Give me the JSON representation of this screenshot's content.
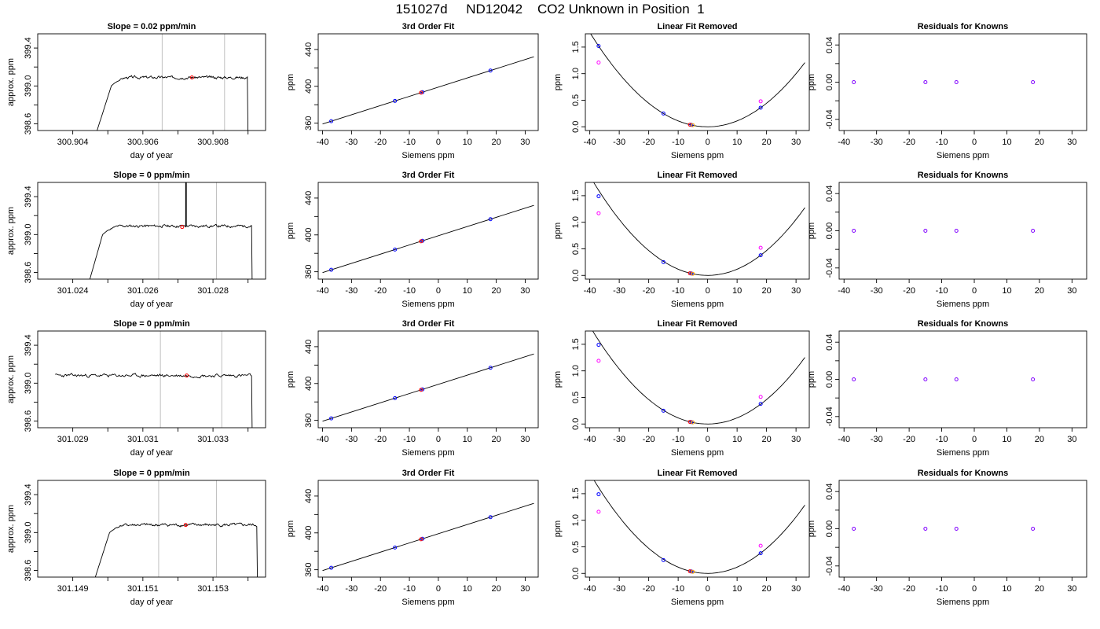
{
  "page": {
    "title": "151027d     ND12042    CO2 Unknown in Position  1"
  },
  "colors": {
    "axis": "#000000",
    "trace": "#000000",
    "guide_lines": "#c0c0c0",
    "known_points": "#0000ff",
    "corrected_points": "#ff00ff",
    "unknown_point": "#ff0000",
    "unknown_point_alt": "#ffa500",
    "residual_points": "#8000ff"
  },
  "chart_data": [
    {
      "type": "line",
      "panel": "raw",
      "row": 0,
      "title": "Slope =  0.02  ppm/min",
      "xlabel": "day of year",
      "ylabel": "approx. ppm",
      "xlim": [
        300.903,
        300.9095
      ],
      "ylim": [
        398.53,
        399.55
      ],
      "x_ticks": [
        300.904,
        300.906,
        300.908
      ],
      "x_tick_labels": [
        "300.904",
        "300.906",
        "300.908"
      ],
      "x_minor_ticks": [
        300.905,
        300.907,
        300.909
      ],
      "y_ticks": [
        398.6,
        399.0,
        399.4
      ],
      "y_tick_labels": [
        "398.6",
        "399.0",
        "399.4"
      ],
      "y_minor_ticks": [
        398.8,
        399.2
      ],
      "guides": [
        300.90655,
        300.90833
      ],
      "trace": {
        "start": 300.90465,
        "rise_end": 300.9051,
        "level_x": 300.9056,
        "end": 300.90898,
        "level": 399.09,
        "noise": 0.01,
        "spike_x": null,
        "seed": 3
      },
      "marker": {
        "x": 300.9074,
        "y": 399.09
      }
    },
    {
      "type": "scatter",
      "panel": "fit",
      "row": 0,
      "title": "3rd Order Fit",
      "xlabel": "Siemens ppm",
      "ylabel": "ppm",
      "xlim": [
        -41.5,
        34.5
      ],
      "ylim": [
        352,
        457
      ],
      "x_ticks": [
        -40,
        -30,
        -20,
        -10,
        0,
        10,
        20,
        30
      ],
      "y_ticks": [
        360,
        400,
        440
      ],
      "y_minor_ticks": [
        380,
        420
      ],
      "line": {
        "slope": 1.0,
        "intercept": 399.1,
        "x0": -40,
        "x1": 33
      },
      "known": [
        [
          -37,
          362.1
        ],
        [
          -15,
          384.1
        ],
        [
          -5.5,
          393.6
        ],
        [
          18,
          417.1
        ]
      ],
      "unknown": [
        [
          -6,
          393.1
        ]
      ]
    },
    {
      "type": "scatter",
      "panel": "linear_removed",
      "row": 0,
      "title": "Linear Fit Removed",
      "xlabel": "Siemens ppm",
      "ylabel": "ppm",
      "xlim": [
        -41.5,
        34.5
      ],
      "ylim": [
        -0.07,
        1.75
      ],
      "x_ticks": [
        -40,
        -30,
        -20,
        -10,
        0,
        10,
        20,
        30
      ],
      "y_ticks": [
        0.0,
        0.5,
        1.0,
        1.5
      ],
      "y_tick_labels": [
        "0.0",
        "0.5",
        "1.0",
        "1.5"
      ],
      "curve": {
        "a": 0.00111,
        "x0": -40,
        "x1": 33
      },
      "known": [
        [
          -37,
          1.52
        ],
        [
          -15,
          0.25
        ],
        [
          -5.5,
          0.035
        ],
        [
          18,
          0.36
        ]
      ],
      "corrected": [
        [
          -37,
          1.21
        ],
        [
          18,
          0.48
        ]
      ],
      "unknown": [
        [
          -6,
          0.04
        ],
        [
          -5,
          0.03
        ]
      ]
    },
    {
      "type": "scatter",
      "panel": "residuals",
      "row": 0,
      "title": "Residuals for Knowns",
      "xlabel": "Siemens ppm",
      "ylabel": "ppm",
      "xlim": [
        -41.5,
        34.5
      ],
      "ylim": [
        -0.052,
        0.052
      ],
      "x_ticks": [
        -40,
        -30,
        -20,
        -10,
        0,
        10,
        20,
        30
      ],
      "y_ticks": [
        -0.04,
        0.0,
        0.04
      ],
      "y_tick_labels": [
        "-0.04",
        "0.00",
        "0.04"
      ],
      "y_minor_ticks": [
        -0.02,
        0.02
      ],
      "points": [
        [
          -37,
          0
        ],
        [
          -15,
          0
        ],
        [
          -5.5,
          0
        ],
        [
          18,
          0
        ]
      ]
    },
    {
      "type": "line",
      "panel": "raw",
      "row": 1,
      "title": "Slope =  0  ppm/min",
      "xlabel": "day of year",
      "ylabel": "approx. ppm",
      "xlim": [
        301.023,
        301.0295
      ],
      "ylim": [
        398.53,
        399.55
      ],
      "x_ticks": [
        301.024,
        301.026,
        301.028
      ],
      "x_tick_labels": [
        "301.024",
        "301.026",
        "301.028"
      ],
      "x_minor_ticks": [
        301.025,
        301.027,
        301.029
      ],
      "y_ticks": [
        398.6,
        399.0,
        399.4
      ],
      "y_tick_labels": [
        "398.6",
        "399.0",
        "399.4"
      ],
      "y_minor_ticks": [
        398.8,
        399.2
      ],
      "guides": [
        301.02645,
        301.0281
      ],
      "trace": {
        "start": 301.02445,
        "rise_end": 301.02485,
        "level_x": 301.0254,
        "end": 301.0291,
        "level": 399.09,
        "noise": 0.01,
        "spike_x": 301.02722,
        "seed": 11
      },
      "marker": {
        "x": 301.02712,
        "y": 399.08
      }
    },
    {
      "type": "scatter",
      "panel": "fit",
      "row": 1,
      "title": "3rd Order Fit",
      "xlabel": "Siemens ppm",
      "ylabel": "ppm",
      "xlim": [
        -41.5,
        34.5
      ],
      "ylim": [
        352,
        457
      ],
      "x_ticks": [
        -40,
        -30,
        -20,
        -10,
        0,
        10,
        20,
        30
      ],
      "y_ticks": [
        360,
        400,
        440
      ],
      "y_minor_ticks": [
        380,
        420
      ],
      "line": {
        "slope": 1.0,
        "intercept": 399.1,
        "x0": -40,
        "x1": 33
      },
      "known": [
        [
          -37,
          362.1
        ],
        [
          -15,
          384.1
        ],
        [
          -5.5,
          393.6
        ],
        [
          18,
          417.1
        ]
      ],
      "unknown": [
        [
          -6,
          393.1
        ]
      ]
    },
    {
      "type": "scatter",
      "panel": "linear_removed",
      "row": 1,
      "title": "Linear Fit Removed",
      "xlabel": "Siemens ppm",
      "ylabel": "ppm",
      "xlim": [
        -41.5,
        34.5
      ],
      "ylim": [
        -0.07,
        1.75
      ],
      "x_ticks": [
        -40,
        -30,
        -20,
        -10,
        0,
        10,
        20,
        30
      ],
      "y_ticks": [
        0.0,
        0.5,
        1.0,
        1.5
      ],
      "y_tick_labels": [
        "0.0",
        "0.5",
        "1.0",
        "1.5"
      ],
      "curve": {
        "a": 0.00117,
        "x0": -40,
        "x1": 33
      },
      "known": [
        [
          -37,
          1.49
        ],
        [
          -15,
          0.25
        ],
        [
          -5.5,
          0.035
        ],
        [
          18,
          0.38
        ]
      ],
      "corrected": [
        [
          -37,
          1.17
        ],
        [
          18,
          0.52
        ]
      ],
      "unknown": [
        [
          -6,
          0.04
        ],
        [
          -5,
          0.03
        ]
      ]
    },
    {
      "type": "scatter",
      "panel": "residuals",
      "row": 1,
      "title": "Residuals for Knowns",
      "xlabel": "Siemens ppm",
      "ylabel": "ppm",
      "xlim": [
        -41.5,
        34.5
      ],
      "ylim": [
        -0.052,
        0.052
      ],
      "x_ticks": [
        -40,
        -30,
        -20,
        -10,
        0,
        10,
        20,
        30
      ],
      "y_ticks": [
        -0.04,
        0.0,
        0.04
      ],
      "y_tick_labels": [
        "-0.04",
        "0.00",
        "0.04"
      ],
      "y_minor_ticks": [
        -0.02,
        0.02
      ],
      "points": [
        [
          -37,
          0
        ],
        [
          -15,
          0
        ],
        [
          -5.5,
          0
        ],
        [
          18,
          0
        ]
      ]
    },
    {
      "type": "line",
      "panel": "raw",
      "row": 2,
      "title": "Slope =  0  ppm/min",
      "xlabel": "day of year",
      "ylabel": "approx. ppm",
      "xlim": [
        301.028,
        301.0345
      ],
      "ylim": [
        398.53,
        399.55
      ],
      "x_ticks": [
        301.029,
        301.031,
        301.033
      ],
      "x_tick_labels": [
        "301.029",
        "301.031",
        "301.033"
      ],
      "x_minor_ticks": [
        301.03,
        301.032,
        301.034
      ],
      "y_ticks": [
        398.6,
        399.0,
        399.4
      ],
      "y_tick_labels": [
        "398.6",
        "399.0",
        "399.4"
      ],
      "y_minor_ticks": [
        398.8,
        399.2
      ],
      "guides": [
        301.0315,
        301.03325
      ],
      "trace": {
        "start": 301.0285,
        "rise_end": 301.0285,
        "level_x": 301.0285,
        "end": 301.0341,
        "level": 399.08,
        "noise": 0.012,
        "spike_x": null,
        "seed": 23
      },
      "marker": {
        "x": 301.03225,
        "y": 399.08
      }
    },
    {
      "type": "scatter",
      "panel": "fit",
      "row": 2,
      "title": "3rd Order Fit",
      "xlabel": "Siemens ppm",
      "ylabel": "ppm",
      "xlim": [
        -41.5,
        34.5
      ],
      "ylim": [
        352,
        457
      ],
      "x_ticks": [
        -40,
        -30,
        -20,
        -10,
        0,
        10,
        20,
        30
      ],
      "y_ticks": [
        360,
        400,
        440
      ],
      "y_minor_ticks": [
        380,
        420
      ],
      "line": {
        "slope": 1.0,
        "intercept": 399.1,
        "x0": -40,
        "x1": 33
      },
      "known": [
        [
          -37,
          362.1
        ],
        [
          -15,
          384.1
        ],
        [
          -5.5,
          393.6
        ],
        [
          18,
          417.1
        ]
      ],
      "unknown": [
        [
          -6,
          393.1
        ]
      ]
    },
    {
      "type": "scatter",
      "panel": "linear_removed",
      "row": 2,
      "title": "Linear Fit Removed",
      "xlabel": "Siemens ppm",
      "ylabel": "ppm",
      "xlim": [
        -41.5,
        34.5
      ],
      "ylim": [
        -0.07,
        1.75
      ],
      "x_ticks": [
        -40,
        -30,
        -20,
        -10,
        0,
        10,
        20,
        30
      ],
      "y_ticks": [
        0.0,
        0.5,
        1.0,
        1.5
      ],
      "y_tick_labels": [
        "0.0",
        "0.5",
        "1.0",
        "1.5"
      ],
      "curve": {
        "a": 0.00115,
        "x0": -40,
        "x1": 33
      },
      "known": [
        [
          -37,
          1.49
        ],
        [
          -15,
          0.25
        ],
        [
          -5.5,
          0.035
        ],
        [
          18,
          0.38
        ]
      ],
      "corrected": [
        [
          -37,
          1.19
        ],
        [
          18,
          0.51
        ]
      ],
      "unknown": [
        [
          -6,
          0.04
        ],
        [
          -5,
          0.03
        ]
      ]
    },
    {
      "type": "scatter",
      "panel": "residuals",
      "row": 2,
      "title": "Residuals for Knowns",
      "xlabel": "Siemens ppm",
      "ylabel": "ppm",
      "xlim": [
        -41.5,
        34.5
      ],
      "ylim": [
        -0.052,
        0.052
      ],
      "x_ticks": [
        -40,
        -30,
        -20,
        -10,
        0,
        10,
        20,
        30
      ],
      "y_ticks": [
        -0.04,
        0.0,
        0.04
      ],
      "y_tick_labels": [
        "-0.04",
        "0.00",
        "0.04"
      ],
      "y_minor_ticks": [
        -0.02,
        0.02
      ],
      "points": [
        [
          -37,
          0
        ],
        [
          -15,
          0
        ],
        [
          -5.5,
          0
        ],
        [
          18,
          0
        ]
      ]
    },
    {
      "type": "line",
      "panel": "raw",
      "row": 3,
      "title": "Slope =  0  ppm/min",
      "xlabel": "day of year",
      "ylabel": "approx. ppm",
      "xlim": [
        301.148,
        301.1545
      ],
      "ylim": [
        398.53,
        399.55
      ],
      "x_ticks": [
        301.149,
        301.151,
        301.153
      ],
      "x_tick_labels": [
        "301.149",
        "301.151",
        "301.153"
      ],
      "x_minor_ticks": [
        301.15,
        301.152,
        301.154
      ],
      "y_ticks": [
        398.6,
        399.0,
        399.4
      ],
      "y_tick_labels": [
        "398.6",
        "399.0",
        "399.4"
      ],
      "y_minor_ticks": [
        398.8,
        399.2
      ],
      "guides": [
        301.15145,
        301.1531
      ],
      "trace": {
        "start": 301.1496,
        "rise_end": 301.15005,
        "level_x": 301.15055,
        "end": 301.15425,
        "level": 399.08,
        "noise": 0.011,
        "spike_x": null,
        "seed": 41
      },
      "marker": {
        "x": 301.15222,
        "y": 399.08
      }
    },
    {
      "type": "scatter",
      "panel": "fit",
      "row": 3,
      "title": "3rd Order Fit",
      "xlabel": "Siemens ppm",
      "ylabel": "ppm",
      "xlim": [
        -41.5,
        34.5
      ],
      "ylim": [
        352,
        457
      ],
      "x_ticks": [
        -40,
        -30,
        -20,
        -10,
        0,
        10,
        20,
        30
      ],
      "y_ticks": [
        360,
        400,
        440
      ],
      "y_minor_ticks": [
        380,
        420
      ],
      "line": {
        "slope": 1.0,
        "intercept": 399.1,
        "x0": -40,
        "x1": 33
      },
      "known": [
        [
          -37,
          362.1
        ],
        [
          -15,
          384.1
        ],
        [
          -5.5,
          393.6
        ],
        [
          18,
          417.1
        ]
      ],
      "unknown": [
        [
          -6,
          393.1
        ]
      ]
    },
    {
      "type": "scatter",
      "panel": "linear_removed",
      "row": 3,
      "title": "Linear Fit Removed",
      "xlabel": "Siemens ppm",
      "ylabel": "ppm",
      "xlim": [
        -41.5,
        34.5
      ],
      "ylim": [
        -0.07,
        1.75
      ],
      "x_ticks": [
        -40,
        -30,
        -20,
        -10,
        0,
        10,
        20,
        30
      ],
      "y_ticks": [
        0.0,
        0.5,
        1.0,
        1.5
      ],
      "y_tick_labels": [
        "0.0",
        "0.5",
        "1.0",
        "1.5"
      ],
      "curve": {
        "a": 0.00118,
        "x0": -40,
        "x1": 33
      },
      "known": [
        [
          -37,
          1.49
        ],
        [
          -15,
          0.25
        ],
        [
          -5.5,
          0.035
        ],
        [
          18,
          0.38
        ]
      ],
      "corrected": [
        [
          -37,
          1.16
        ],
        [
          18,
          0.52
        ]
      ],
      "unknown": [
        [
          -6,
          0.04
        ],
        [
          -5,
          0.03
        ]
      ]
    },
    {
      "type": "scatter",
      "panel": "residuals",
      "row": 3,
      "title": "Residuals for Knowns",
      "xlabel": "Siemens ppm",
      "ylabel": "ppm",
      "xlim": [
        -41.5,
        34.5
      ],
      "ylim": [
        -0.052,
        0.052
      ],
      "x_ticks": [
        -40,
        -30,
        -20,
        -10,
        0,
        10,
        20,
        30
      ],
      "y_ticks": [
        -0.04,
        0.0,
        0.04
      ],
      "y_tick_labels": [
        "-0.04",
        "0.00",
        "0.04"
      ],
      "y_minor_ticks": [
        -0.02,
        0.02
      ],
      "points": [
        [
          -37,
          0
        ],
        [
          -15,
          0
        ],
        [
          -5.5,
          0
        ],
        [
          18,
          0
        ]
      ]
    }
  ]
}
